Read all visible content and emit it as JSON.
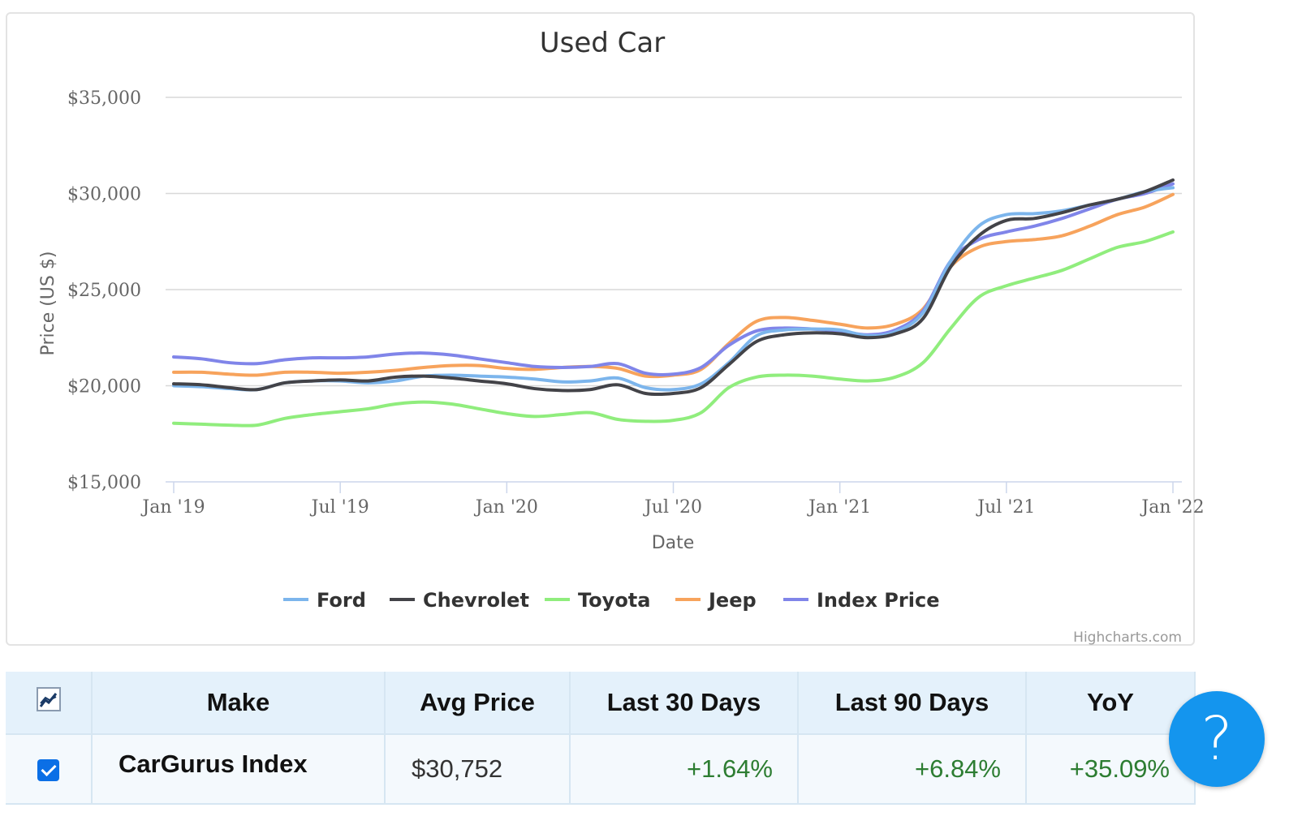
{
  "chart_data": {
    "type": "line",
    "title": "Used Car",
    "xlabel": "Date",
    "ylabel": "Price (US $)",
    "ylim": [
      15000,
      35000
    ],
    "yticks": [
      "$15,000",
      "$20,000",
      "$25,000",
      "$30,000",
      "$35,000"
    ],
    "ytick_values": [
      15000,
      20000,
      25000,
      30000,
      35000
    ],
    "xticks": [
      "Jan '19",
      "Jul '19",
      "Jan '20",
      "Jul '20",
      "Jan '21",
      "Jul '21",
      "Jan '22"
    ],
    "x": [
      "2019-01",
      "2019-02",
      "2019-03",
      "2019-04",
      "2019-05",
      "2019-06",
      "2019-07",
      "2019-08",
      "2019-09",
      "2019-10",
      "2019-11",
      "2019-12",
      "2020-01",
      "2020-02",
      "2020-03",
      "2020-04",
      "2020-05",
      "2020-06",
      "2020-07",
      "2020-08",
      "2020-09",
      "2020-10",
      "2020-11",
      "2020-12",
      "2021-01",
      "2021-02",
      "2021-03",
      "2021-04",
      "2021-05",
      "2021-06",
      "2021-07",
      "2021-08",
      "2021-09",
      "2021-10",
      "2021-11",
      "2021-12",
      "2022-01"
    ],
    "legend_position": "bottom-center",
    "grid": true,
    "series": [
      {
        "name": "Ford",
        "color": "#7cb5ec",
        "values": [
          20000,
          19950,
          19850,
          19800,
          20150,
          20250,
          20250,
          20150,
          20250,
          20500,
          20550,
          20500,
          20450,
          20350,
          20200,
          20250,
          20400,
          19900,
          19800,
          20100,
          21200,
          22600,
          22900,
          22950,
          22900,
          22600,
          22800,
          23800,
          26500,
          28300,
          28900,
          28950,
          29100,
          29400,
          29700,
          30100,
          30300
        ]
      },
      {
        "name": "Chevrolet",
        "color": "#434348",
        "values": [
          20100,
          20050,
          19900,
          19800,
          20150,
          20250,
          20300,
          20250,
          20450,
          20500,
          20400,
          20250,
          20100,
          19850,
          19750,
          19800,
          20050,
          19600,
          19600,
          19900,
          21100,
          22300,
          22650,
          22750,
          22700,
          22500,
          22700,
          23500,
          26200,
          27800,
          28600,
          28700,
          29000,
          29400,
          29700,
          30100,
          30700
        ]
      },
      {
        "name": "Toyota",
        "color": "#90ed7d",
        "values": [
          18050,
          18000,
          17950,
          17950,
          18300,
          18500,
          18650,
          18800,
          19050,
          19150,
          19050,
          18800,
          18550,
          18400,
          18500,
          18600,
          18250,
          18150,
          18200,
          18600,
          19900,
          20450,
          20550,
          20500,
          20350,
          20250,
          20450,
          21200,
          23000,
          24600,
          25200,
          25600,
          26000,
          26600,
          27200,
          27500,
          28000
        ]
      },
      {
        "name": "Jeep",
        "color": "#f7a35c",
        "values": [
          20700,
          20700,
          20600,
          20550,
          20700,
          20700,
          20650,
          20700,
          20800,
          20950,
          21050,
          21050,
          20900,
          20850,
          20950,
          21000,
          20900,
          20500,
          20550,
          20850,
          22200,
          23350,
          23550,
          23400,
          23200,
          23000,
          23200,
          24000,
          26200,
          27200,
          27500,
          27600,
          27800,
          28300,
          28900,
          29300,
          29950
        ]
      },
      {
        "name": "Index Price",
        "color": "#8085e9",
        "values": [
          21500,
          21400,
          21200,
          21150,
          21350,
          21450,
          21450,
          21500,
          21650,
          21700,
          21600,
          21400,
          21200,
          21000,
          20950,
          21000,
          21150,
          20650,
          20600,
          20950,
          22100,
          22850,
          23000,
          22950,
          22850,
          22650,
          22900,
          23900,
          26500,
          27600,
          28000,
          28300,
          28700,
          29200,
          29700,
          30000,
          30500
        ]
      }
    ]
  },
  "credits": "Highcharts.com",
  "table": {
    "headers": [
      "Make",
      "Avg Price",
      "Last 30 Days",
      "Last 90 Days",
      "YoY"
    ],
    "chart_icon": "line-chart-icon",
    "rows": [
      {
        "make": "CarGurus Index",
        "avg_price": "$30,752",
        "last_30": "+1.64%",
        "last_90": "+6.84%",
        "yoy": "+35.09%",
        "checked": true
      }
    ]
  },
  "help_button": {
    "label": "?",
    "color": "#1495ee"
  }
}
